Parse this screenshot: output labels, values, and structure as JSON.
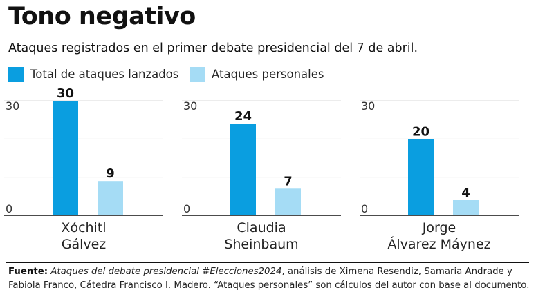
{
  "title": "Tono negativo",
  "subtitle": "Ataques registrados en el primer debate presidencial del 7 de abril.",
  "colors": {
    "total": "#0a9ee0",
    "personal": "#a5dcf5"
  },
  "legend": {
    "total_label": "Total de ataques lanzados",
    "personal_label": "Ataques personales"
  },
  "chart_data": {
    "type": "bar",
    "categories": [
      "Xóchitl Gálvez",
      "Claudia Sheinbaum",
      "Jorge Álvarez Máynez"
    ],
    "series": [
      {
        "name": "Total de ataques lanzados",
        "values": [
          30,
          24,
          20
        ]
      },
      {
        "name": "Ataques personales",
        "values": [
          9,
          7,
          4
        ]
      }
    ],
    "ylim": [
      0,
      30
    ],
    "yticks": [
      0,
      30
    ],
    "grid": true,
    "legend_position": "top-left",
    "panels": [
      {
        "name_line1": "Xóchitl",
        "name_line2": "Gálvez",
        "total": 30,
        "personal": 9
      },
      {
        "name_line1": "Claudia",
        "name_line2": "Sheinbaum",
        "total": 24,
        "personal": 7
      },
      {
        "name_line1": "Jorge",
        "name_line2": "Álvarez Máynez",
        "total": 20,
        "personal": 4
      }
    ]
  },
  "source": {
    "label": "Fuente:",
    "italic_text": "Ataques del debate presidencial #Elecciones2024",
    "text": ", análisis de Ximena Resendiz, Samaria Andrade y Fabiola Franco, Cátedra Francisco I. Madero. “Ataques personales” son cálculos del autor con base al documento."
  }
}
